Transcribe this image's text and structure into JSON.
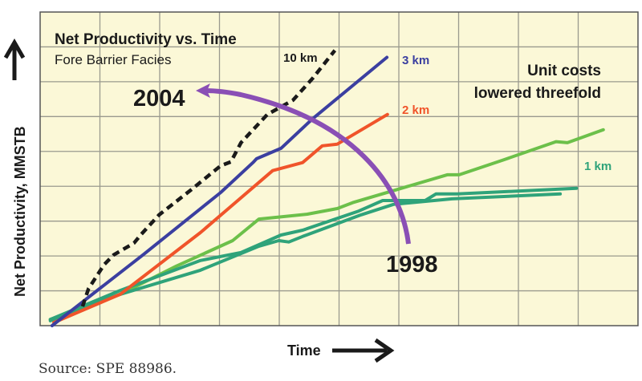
{
  "chart_data": {
    "type": "line",
    "title": "Net Productivity vs. Time",
    "subtitle": "Fore Barrier Facies",
    "xlabel": "Time",
    "ylabel": "Net Productivity, MMSTB",
    "xlim": [
      0,
      10
    ],
    "ylim": [
      0,
      9
    ],
    "grid": true,
    "x_ticks_count": 10,
    "y_ticks_count": 9,
    "tick_labels_shown": false,
    "source": "Source:  SPE 88986.",
    "series": [
      {
        "name": "10 km",
        "label": "10 km",
        "color": "#1a1a1a",
        "style": "dashed",
        "points": [
          [
            0.71,
            0.55
          ],
          [
            0.81,
            1.06
          ],
          [
            1.07,
            1.75
          ],
          [
            1.23,
            2.03
          ],
          [
            1.57,
            2.37
          ],
          [
            1.68,
            2.6
          ],
          [
            1.99,
            3.18
          ],
          [
            2.52,
            3.89
          ],
          [
            3.02,
            4.59
          ],
          [
            3.19,
            4.7
          ],
          [
            3.36,
            5.25
          ],
          [
            3.8,
            6.06
          ],
          [
            4.23,
            6.47
          ],
          [
            4.56,
            7.1
          ],
          [
            4.93,
            7.9
          ]
        ]
      },
      {
        "name": "3 km",
        "label": "3 km",
        "color": "#3b3fa0",
        "style": "solid",
        "points": [
          [
            0.2,
            0.0
          ],
          [
            1.72,
            2.03
          ],
          [
            3.02,
            3.82
          ],
          [
            3.56,
            4.68
          ],
          [
            3.62,
            4.79
          ],
          [
            4.03,
            5.09
          ],
          [
            4.56,
            5.94
          ],
          [
            5.8,
            7.7
          ]
        ]
      },
      {
        "name": "2 km",
        "label": "2 km",
        "color": "#f0542a",
        "style": "solid",
        "points": [
          [
            0.23,
            0.09
          ],
          [
            1.34,
            0.9
          ],
          [
            2.68,
            2.67
          ],
          [
            3.89,
            4.45
          ],
          [
            4.39,
            4.68
          ],
          [
            4.72,
            5.16
          ],
          [
            4.97,
            5.21
          ],
          [
            5.81,
            6.06
          ]
        ]
      },
      {
        "name": "1 km (light green)",
        "label": "",
        "color": "#6cc04a",
        "style": "solid",
        "points": [
          [
            0.17,
            0.18
          ],
          [
            1.34,
            0.9
          ],
          [
            2.28,
            1.71
          ],
          [
            3.22,
            2.44
          ],
          [
            3.66,
            3.06
          ],
          [
            4.47,
            3.2
          ],
          [
            4.97,
            3.36
          ],
          [
            5.23,
            3.53
          ],
          [
            6.81,
            4.33
          ],
          [
            7.01,
            4.33
          ],
          [
            7.74,
            4.75
          ],
          [
            8.63,
            5.28
          ],
          [
            8.82,
            5.25
          ],
          [
            9.42,
            5.62
          ]
        ]
      },
      {
        "name": "1 km",
        "label": "1 km",
        "color": "#2fa37a",
        "style": "solid",
        "points": [
          [
            0.17,
            0.18
          ],
          [
            1.34,
            1.01
          ],
          [
            2.68,
            1.87
          ],
          [
            3.36,
            2.1
          ],
          [
            4.03,
            2.6
          ],
          [
            4.39,
            2.74
          ],
          [
            5.33,
            3.29
          ],
          [
            5.73,
            3.59
          ],
          [
            6.44,
            3.59
          ],
          [
            6.62,
            3.78
          ],
          [
            6.98,
            3.78
          ],
          [
            8.97,
            3.94
          ]
        ]
      },
      {
        "name": "1 km (second trace)",
        "label": "",
        "color": "#2fa37a",
        "style": "solid",
        "points": [
          [
            0.17,
            0.14
          ],
          [
            1.34,
            0.9
          ],
          [
            2.68,
            1.59
          ],
          [
            3.66,
            2.28
          ],
          [
            3.99,
            2.44
          ],
          [
            4.16,
            2.4
          ],
          [
            4.39,
            2.56
          ],
          [
            5.37,
            3.18
          ],
          [
            5.91,
            3.48
          ],
          [
            6.89,
            3.64
          ],
          [
            8.7,
            3.78
          ]
        ]
      }
    ],
    "annotations": [
      {
        "text": "2004",
        "role": "arrow-head-year"
      },
      {
        "text": "1998",
        "role": "arrow-tail-year"
      },
      {
        "text": "Unit costs",
        "role": "note-line-1"
      },
      {
        "text": "lowered threefold",
        "role": "note-line-2"
      }
    ],
    "arrow": {
      "from_year": "1998",
      "to_year": "2004",
      "color": "#8a4fb5"
    },
    "colors": {
      "plot_background": "#fbf8d7",
      "grid": "#9a9a8e",
      "axis_arrows": "#1a1a1a"
    }
  }
}
